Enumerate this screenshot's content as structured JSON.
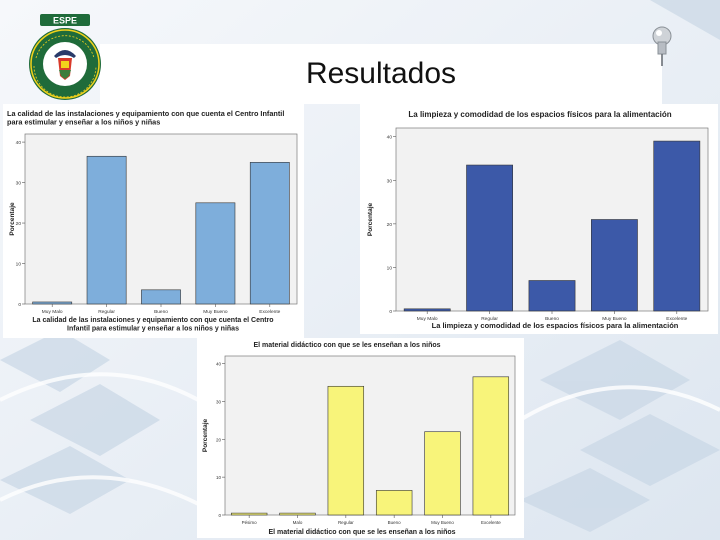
{
  "slide": {
    "title": "Resultados"
  },
  "logo": {
    "top_text": "ESPE",
    "ring_text": "UNIVERSIDAD DE LAS FUERZAS ARMADAS"
  },
  "colors": {
    "chart1_bar": "#7eaedb",
    "chart2_bar": "#3c59a8",
    "chart3_bar": "#f8f47a",
    "plot_bg": "#f2f2f2",
    "logo_green": "#1f6b3a"
  },
  "chart_data": [
    {
      "type": "bar",
      "title": "La calidad de las instalaciones y equipamiento con que cuenta el Centro Infantil para estimular y enseñar a los niños y niñas",
      "title_lines": [
        "La calidad de las instalaciones y equipamiento con que cuenta el Centro Infantil",
        "para estimular y enseñar a los niños y niñas"
      ],
      "xlabel": "La calidad de las instalaciones y equipamiento con que cuenta el Centro Infantil para estimular y enseñar a los niños y niñas",
      "xlabel_lines": [
        "La calidad de las instalaciones y equipamiento con que cuenta el Centro",
        "Infantil para estimular y enseñar a los niños y niñas"
      ],
      "ylabel": "Porcentaje",
      "categories": [
        "Muy Malo",
        "Regular",
        "Bueno",
        "Muy Bueno",
        "Excelente"
      ],
      "values": [
        0.5,
        36.5,
        3.5,
        25,
        35
      ],
      "yticks": [
        0,
        10,
        20,
        30,
        40
      ],
      "ylim": [
        0,
        42
      ]
    },
    {
      "type": "bar",
      "title": "La limpieza y comodidad de los espacios físicos para la alimentación",
      "title_lines": [
        "La limpieza y comodidad de los espacios físicos para la alimentación"
      ],
      "xlabel": "La limpieza y comodidad de los espacios físicos para la alimentación",
      "xlabel_lines": [
        "La limpieza y comodidad de los espacios físicos para la alimentación"
      ],
      "ylabel": "Porcentaje",
      "categories": [
        "Muy Malo",
        "Regular",
        "Bueno",
        "Muy Bueno",
        "Excelente"
      ],
      "values": [
        0.5,
        33.5,
        7,
        21,
        39
      ],
      "yticks": [
        0,
        10,
        20,
        30,
        40
      ],
      "ylim": [
        0,
        42
      ]
    },
    {
      "type": "bar",
      "title": "El material didáctico con que se les enseñan a los niños",
      "title_lines": [
        "El material didáctico con que se les enseñan a los niños"
      ],
      "xlabel": "El material didáctico con que se les enseñan a los niños",
      "xlabel_lines": [
        "El material didáctico con que se les enseñan a los niños"
      ],
      "ylabel": "Porcentaje",
      "categories": [
        "Pésimo",
        "Malo",
        "Regular",
        "Bueno",
        "Muy Bueno",
        "Excelente"
      ],
      "values": [
        0.5,
        0.5,
        34,
        6.5,
        22,
        36.5
      ],
      "yticks": [
        0,
        10,
        20,
        30,
        40
      ],
      "ylim": [
        0,
        42
      ]
    }
  ]
}
